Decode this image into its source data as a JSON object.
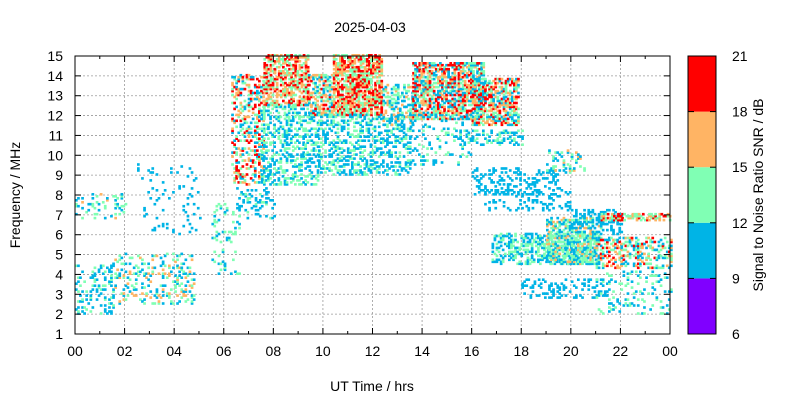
{
  "chart_data": {
    "type": "heatmap",
    "title": "2025-04-03",
    "xlabel": "UT Time / hrs",
    "ylabel": "Frequency / MHz",
    "xlim": [
      0,
      24
    ],
    "ylim": [
      1,
      15
    ],
    "xticks": [
      "00",
      "02",
      "04",
      "06",
      "08",
      "10",
      "12",
      "14",
      "16",
      "18",
      "20",
      "22",
      "00"
    ],
    "yticks": [
      "1",
      "2",
      "3",
      "4",
      "5",
      "6",
      "7",
      "8",
      "9",
      "10",
      "11",
      "12",
      "13",
      "14",
      "15"
    ],
    "grid": true,
    "colorbar": {
      "label": "Signal to Noise Ratio SNR / dB",
      "ticks": [
        "6",
        "9",
        "12",
        "15",
        "18",
        "21"
      ],
      "bands": [
        {
          "from": 6,
          "to": 9,
          "color": "#8000ff"
        },
        {
          "from": 9,
          "to": 12,
          "color": "#00b4e6"
        },
        {
          "from": 12,
          "to": 15,
          "color": "#80ffb4"
        },
        {
          "from": 15,
          "to": 18,
          "color": "#ffb464"
        },
        {
          "from": 18,
          "to": 21,
          "color": "#ff0000"
        }
      ]
    },
    "regions": [
      {
        "t0": 0.0,
        "t1": 1.5,
        "f0": 2.0,
        "f1": 4.5,
        "density": 0.22,
        "snr": [
          9,
          14
        ]
      },
      {
        "t0": 0.0,
        "t1": 2.0,
        "f0": 6.8,
        "f1": 8.0,
        "density": 0.18,
        "snr": [
          9,
          16
        ]
      },
      {
        "t0": 1.5,
        "t1": 4.8,
        "f0": 2.5,
        "f1": 5.0,
        "density": 0.2,
        "snr": [
          9,
          17
        ]
      },
      {
        "t0": 2.5,
        "t1": 5.0,
        "f0": 6.0,
        "f1": 9.5,
        "density": 0.06,
        "snr": [
          9,
          12
        ]
      },
      {
        "t0": 5.5,
        "t1": 6.6,
        "f0": 4.0,
        "f1": 7.5,
        "density": 0.15,
        "snr": [
          9,
          15
        ]
      },
      {
        "t0": 6.3,
        "t1": 7.6,
        "f0": 8.5,
        "f1": 14.0,
        "density": 0.35,
        "snr": [
          9,
          21
        ]
      },
      {
        "t0": 6.5,
        "t1": 8.0,
        "f0": 6.8,
        "f1": 8.3,
        "density": 0.2,
        "snr": [
          9,
          13
        ]
      },
      {
        "t0": 7.6,
        "t1": 9.4,
        "f0": 12.5,
        "f1": 15.0,
        "density": 0.6,
        "snr": [
          12,
          21
        ]
      },
      {
        "t0": 7.5,
        "t1": 9.8,
        "f0": 8.5,
        "f1": 12.5,
        "density": 0.35,
        "snr": [
          9,
          15
        ]
      },
      {
        "t0": 9.4,
        "t1": 10.4,
        "f0": 12.0,
        "f1": 14.0,
        "density": 0.55,
        "snr": [
          9,
          20
        ]
      },
      {
        "t0": 10.4,
        "t1": 12.4,
        "f0": 12.0,
        "f1": 15.0,
        "density": 0.75,
        "snr": [
          12,
          21
        ]
      },
      {
        "t0": 9.8,
        "t1": 13.5,
        "f0": 9.0,
        "f1": 12.0,
        "density": 0.35,
        "snr": [
          9,
          14
        ]
      },
      {
        "t0": 12.4,
        "t1": 13.6,
        "f0": 11.5,
        "f1": 13.5,
        "density": 0.4,
        "snr": [
          9,
          17
        ]
      },
      {
        "t0": 13.6,
        "t1": 16.5,
        "f0": 11.8,
        "f1": 14.6,
        "density": 0.65,
        "snr": [
          9,
          21
        ]
      },
      {
        "t0": 13.5,
        "t1": 16.0,
        "f0": 9.5,
        "f1": 12.0,
        "density": 0.15,
        "snr": [
          9,
          13
        ]
      },
      {
        "t0": 16.0,
        "t1": 17.9,
        "f0": 11.5,
        "f1": 13.8,
        "density": 0.6,
        "snr": [
          9,
          21
        ]
      },
      {
        "t0": 15.5,
        "t1": 18.0,
        "f0": 10.5,
        "f1": 11.2,
        "density": 0.3,
        "snr": [
          9,
          14
        ]
      },
      {
        "t0": 16.0,
        "t1": 19.5,
        "f0": 8.0,
        "f1": 9.3,
        "density": 0.25,
        "snr": [
          9,
          12
        ]
      },
      {
        "t0": 16.5,
        "t1": 20.0,
        "f0": 7.2,
        "f1": 8.2,
        "density": 0.18,
        "snr": [
          9,
          12
        ]
      },
      {
        "t0": 16.8,
        "t1": 21.0,
        "f0": 4.5,
        "f1": 6.0,
        "density": 0.45,
        "snr": [
          9,
          15
        ]
      },
      {
        "t0": 19.0,
        "t1": 21.2,
        "f0": 4.5,
        "f1": 6.8,
        "density": 0.5,
        "snr": [
          9,
          17
        ]
      },
      {
        "t0": 18.0,
        "t1": 21.5,
        "f0": 2.8,
        "f1": 3.8,
        "density": 0.25,
        "snr": [
          9,
          12
        ]
      },
      {
        "t0": 19.0,
        "t1": 20.5,
        "f0": 9.0,
        "f1": 10.2,
        "density": 0.2,
        "snr": [
          9,
          16
        ]
      },
      {
        "t0": 20.0,
        "t1": 22.0,
        "f0": 6.0,
        "f1": 7.2,
        "density": 0.3,
        "snr": [
          9,
          12
        ]
      },
      {
        "t0": 21.2,
        "t1": 24.0,
        "f0": 6.7,
        "f1": 7.0,
        "density": 0.6,
        "snr": [
          12,
          21
        ]
      },
      {
        "t0": 21.0,
        "t1": 24.0,
        "f0": 4.3,
        "f1": 5.8,
        "density": 0.4,
        "snr": [
          9,
          20
        ]
      },
      {
        "t0": 21.0,
        "t1": 24.0,
        "f0": 2.0,
        "f1": 4.2,
        "density": 0.15,
        "snr": [
          9,
          15
        ]
      }
    ]
  }
}
